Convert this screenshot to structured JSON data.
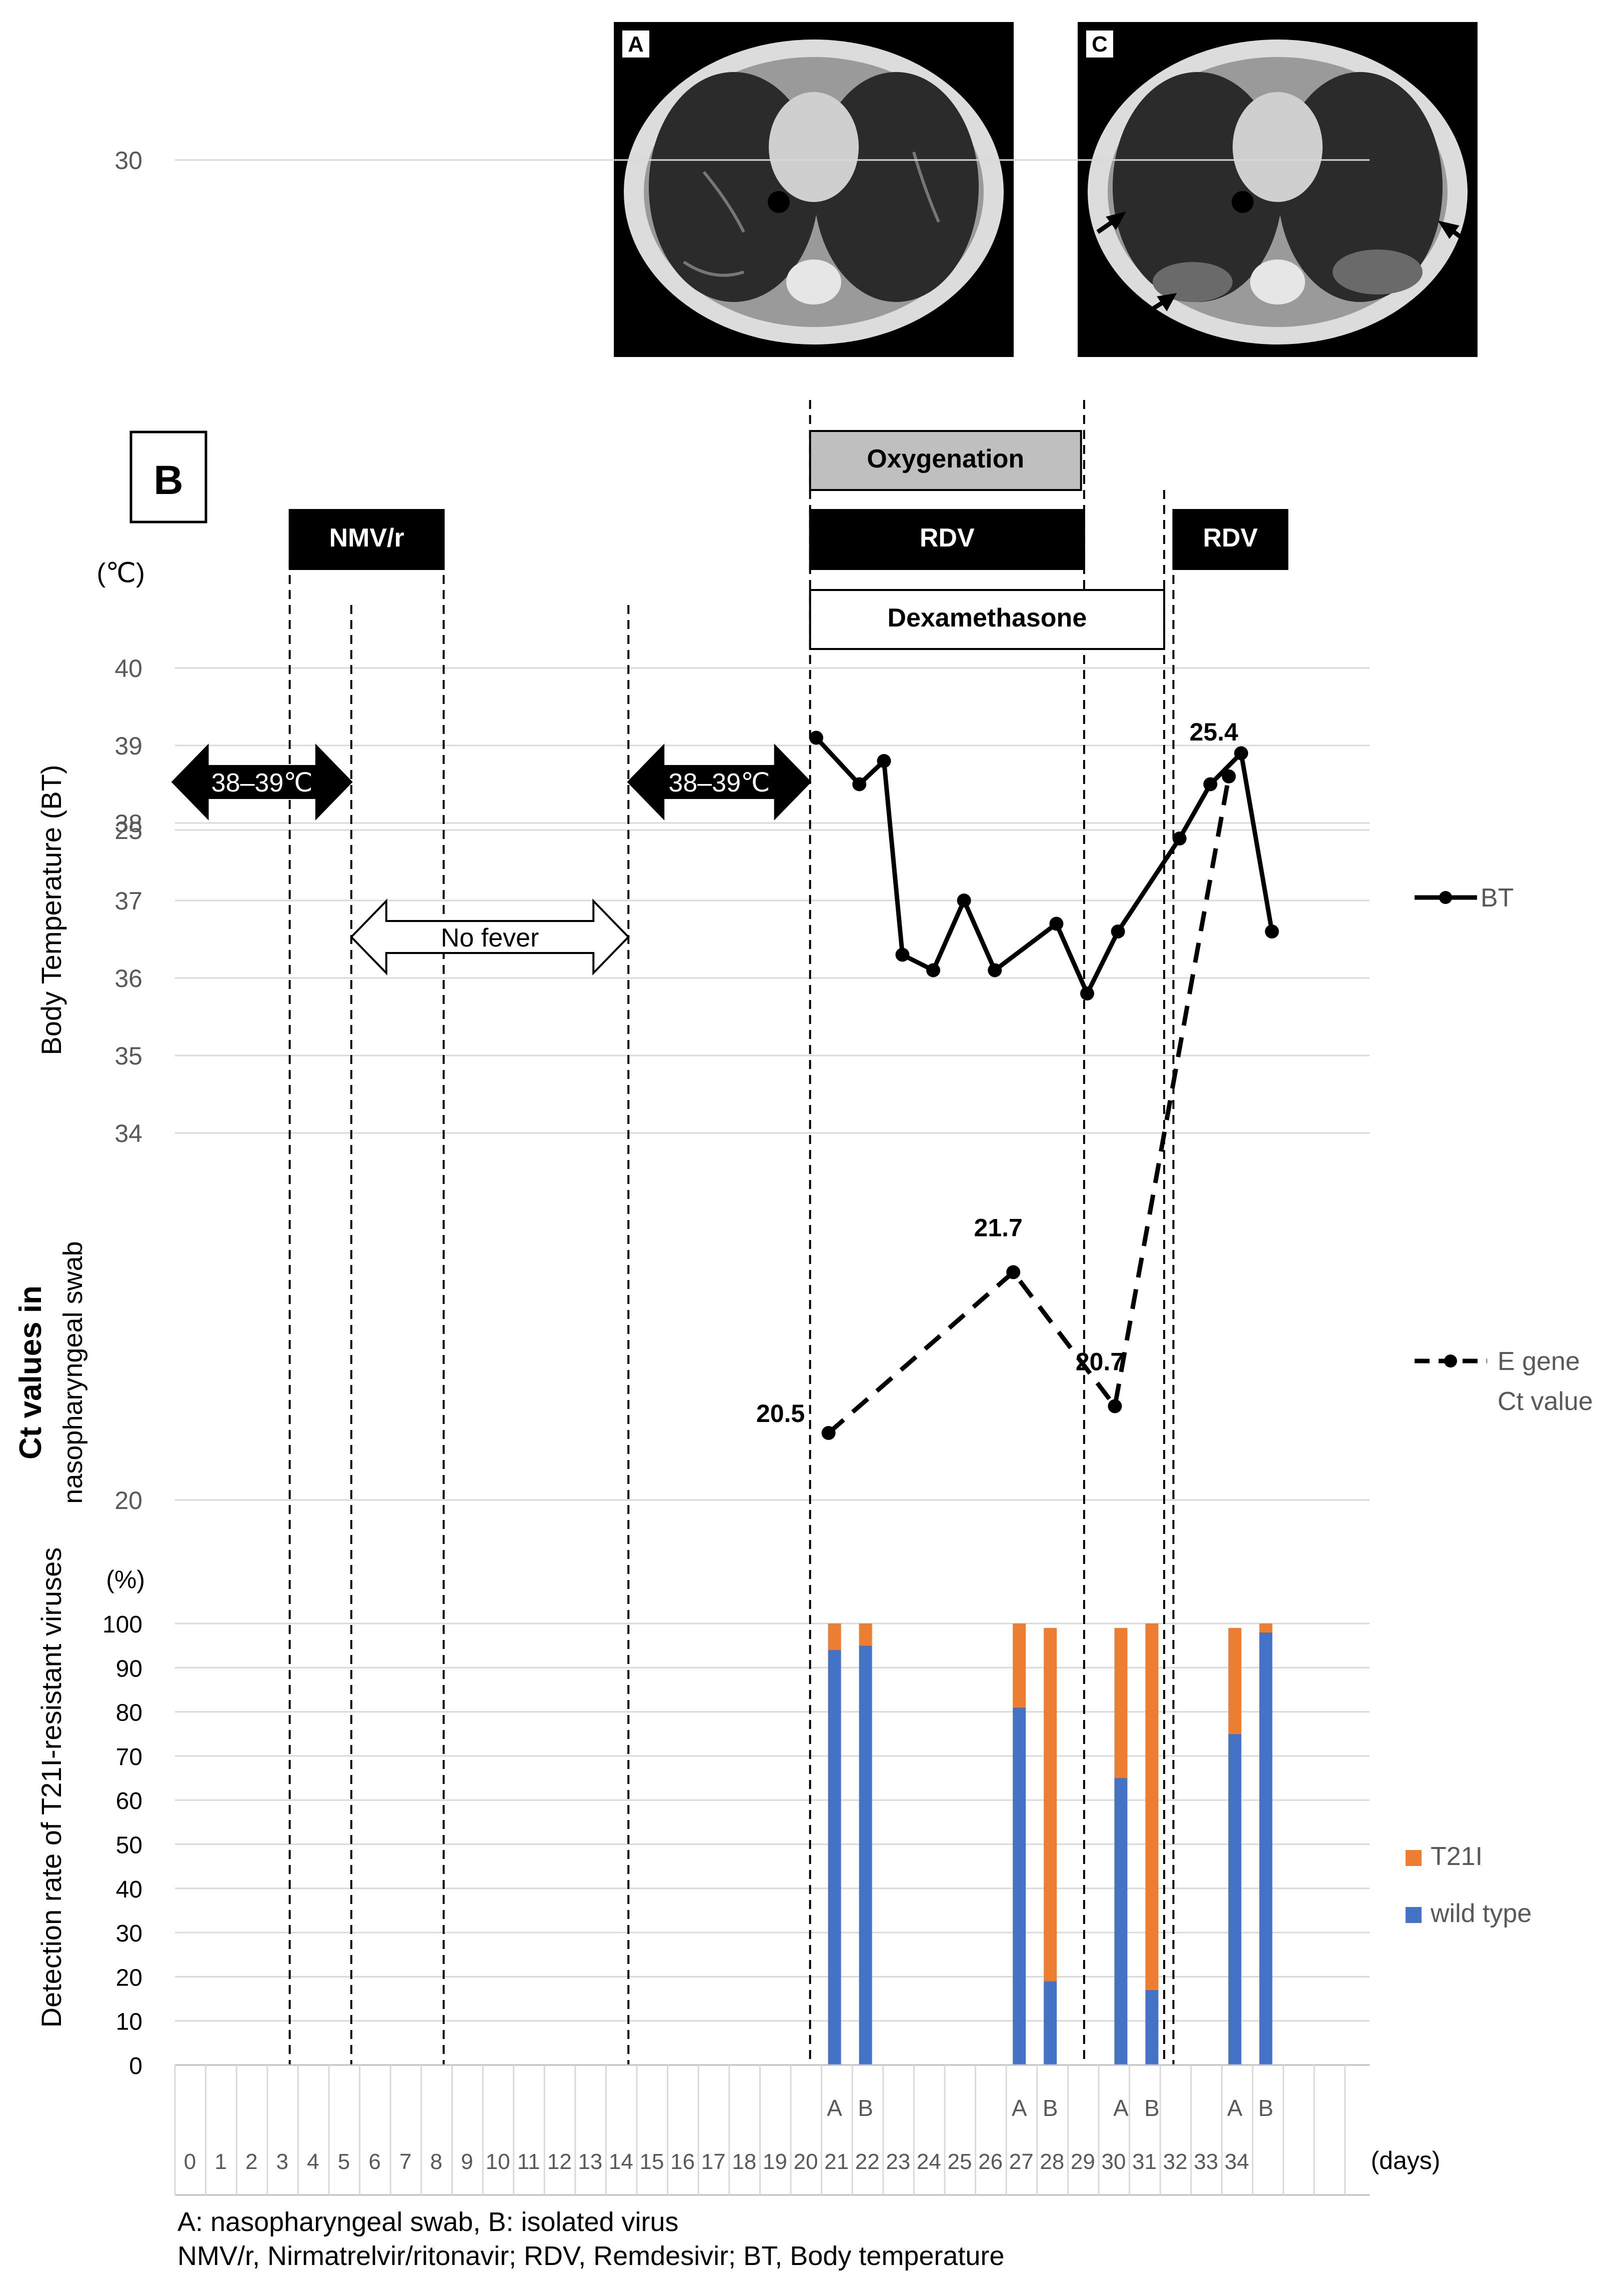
{
  "ct_images": [
    {
      "label": "A",
      "arrows": 0
    },
    {
      "label": "C",
      "arrows": 3
    }
  ],
  "chart_data": {
    "type": "composite (line + stacked bar)",
    "panel_label": "B",
    "x": {
      "ticks": [
        "0",
        "1",
        "2",
        "3",
        "4",
        "5",
        "6",
        "7",
        "8",
        "9",
        "10",
        "11",
        "12",
        "13",
        "14",
        "15",
        "16",
        "17",
        "18",
        "19",
        "20",
        "21",
        "22",
        "23",
        "24",
        "25",
        "26",
        "27",
        "28",
        "29",
        "30",
        "31",
        "32",
        "33",
        "34"
      ],
      "label": "(days)"
    },
    "treatments": [
      {
        "name": "Oxygenation",
        "start_day": 20.4,
        "end_day": 29.2,
        "style": "gray"
      },
      {
        "name": "NMV/r",
        "start_day": 3.5,
        "end_day": 8.5,
        "style": "black"
      },
      {
        "name": "RDV",
        "start_day": 20.4,
        "end_day": 29.3,
        "style": "black"
      },
      {
        "name": "RDV",
        "start_day": 32.2,
        "end_day": 35.9,
        "style": "black"
      },
      {
        "name": "Dexamethasone",
        "start_day": 20.4,
        "end_day": 31.9,
        "style": "white"
      }
    ],
    "vertical_lines_day": [
      3.5,
      5.5,
      8.5,
      14.5,
      20.4,
      29.3,
      31.9,
      32.2
    ],
    "fever_arrows": [
      {
        "label": "38–39℃",
        "start_day": -0.3,
        "end_day": 5.5,
        "style": "black"
      },
      {
        "label": "No fever",
        "start_day": 5.5,
        "end_day": 14.5,
        "style": "white"
      },
      {
        "label": "38–39℃",
        "start_day": 14.5,
        "end_day": 20.4,
        "style": "black"
      }
    ],
    "temperature": {
      "ylabel": "Body Temperature (BT)",
      "unit": "(℃)",
      "yticks": [
        34,
        35,
        36,
        37,
        38,
        39,
        40
      ],
      "ylim": [
        34,
        40
      ],
      "legend": "BT",
      "series": [
        {
          "day": 20.6,
          "value": 39.1
        },
        {
          "day": 22.0,
          "value": 38.5
        },
        {
          "day": 22.8,
          "value": 38.8
        },
        {
          "day": 23.4,
          "value": 36.3
        },
        {
          "day": 24.4,
          "value": 36.1
        },
        {
          "day": 25.4,
          "value": 37.0
        },
        {
          "day": 26.4,
          "value": 36.1
        },
        {
          "day": 28.4,
          "value": 36.7
        },
        {
          "day": 29.4,
          "value": 35.8
        },
        {
          "day": 30.4,
          "value": 36.6
        },
        {
          "day": 32.4,
          "value": 37.8
        },
        {
          "day": 33.4,
          "value": 38.5
        },
        {
          "day": 34.4,
          "value": 38.9
        },
        {
          "day": 35.4,
          "value": 36.6
        }
      ]
    },
    "ct_values": {
      "ylabel_line1": "Ct values in",
      "ylabel_line2": "nasopharyngeal swab",
      "yticks": [
        20,
        25,
        30
      ],
      "ylim": [
        20,
        30
      ],
      "legend_line1": "E gene",
      "legend_line2": "Ct value",
      "series": [
        {
          "day": 21.0,
          "value": 20.5,
          "label": "20.5"
        },
        {
          "day": 27.0,
          "value": 21.7,
          "label": "21.7"
        },
        {
          "day": 30.3,
          "value": 20.7,
          "label": "20.7"
        },
        {
          "day": 34.0,
          "value": 25.4,
          "label": "25.4"
        }
      ]
    },
    "detection": {
      "ylabel": "Detection rate of T21I-resistant viruses",
      "unit": "(%)",
      "yticks": [
        0,
        10,
        20,
        30,
        40,
        50,
        60,
        70,
        80,
        90,
        100
      ],
      "ylim": [
        0,
        100
      ],
      "legend": [
        {
          "name": "T21I",
          "color": "#ED7D31"
        },
        {
          "name": "wild type",
          "color": "#4472C4"
        }
      ],
      "bars": [
        {
          "day": 21.0,
          "sample": "A",
          "wild_type": 94,
          "t21i": 6
        },
        {
          "day": 21.0,
          "sample": "B",
          "wild_type": 95,
          "t21i": 5
        },
        {
          "day": 27.0,
          "sample": "A",
          "wild_type": 81,
          "t21i": 19
        },
        {
          "day": 27.0,
          "sample": "B",
          "wild_type": 19,
          "t21i": 80
        },
        {
          "day": 30.3,
          "sample": "A",
          "wild_type": 65,
          "t21i": 34
        },
        {
          "day": 30.3,
          "sample": "B",
          "wild_type": 17,
          "t21i": 83
        },
        {
          "day": 34.0,
          "sample": "A",
          "wild_type": 75,
          "t21i": 24
        },
        {
          "day": 34.0,
          "sample": "B",
          "wild_type": 98,
          "t21i": 2
        }
      ]
    },
    "footnote_line1": "A: nasopharyngeal swab, B:  isolated virus",
    "footnote_line2": "NMV/r, Nirmatrelvir/ritonavir;  RDV, Remdesivir; BT, Body temperature"
  },
  "colors": {
    "wild_type": "#4472C4",
    "t21i": "#ED7D31",
    "oxygenation": "#BFBFBF",
    "grid": "#D9D9D9"
  }
}
